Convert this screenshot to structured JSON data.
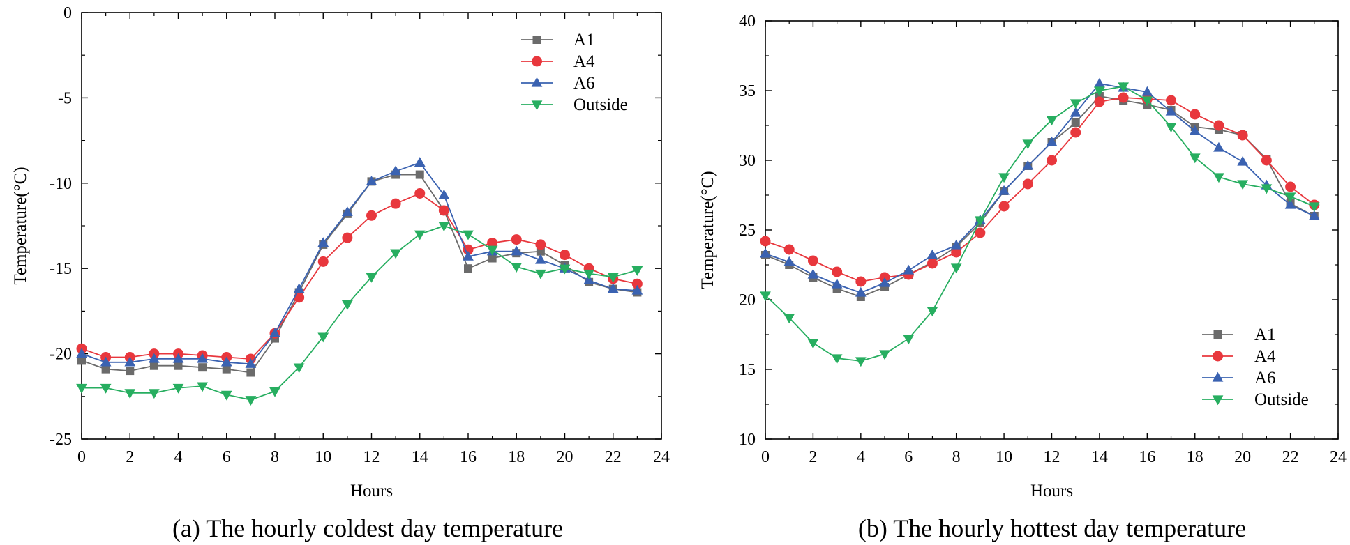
{
  "chart_data": [
    {
      "type": "line",
      "caption": "(a) The hourly coldest day temperature",
      "xlabel": "Hours",
      "ylabel": "Temperature(°C)",
      "xlim": [
        0,
        24
      ],
      "ylim": [
        -25,
        0
      ],
      "xticks": [
        0,
        2,
        4,
        6,
        8,
        10,
        12,
        14,
        16,
        18,
        20,
        22,
        24
      ],
      "yticks": [
        0,
        -5,
        -10,
        -15,
        -20,
        -25
      ],
      "legend_position": "top-right",
      "x": [
        0,
        1,
        2,
        3,
        4,
        5,
        6,
        7,
        8,
        9,
        10,
        11,
        12,
        13,
        14,
        15,
        16,
        17,
        18,
        19,
        20,
        21,
        22,
        23
      ],
      "series": [
        {
          "name": "A1",
          "color": "#6b6b6b",
          "marker": "square",
          "values": [
            -20.4,
            -20.9,
            -21.0,
            -20.7,
            -20.7,
            -20.8,
            -20.9,
            -21.1,
            -19.1,
            -16.4,
            -13.6,
            -11.8,
            -9.9,
            -9.5,
            -9.5,
            -11.6,
            -15.0,
            -14.4,
            -14.1,
            -14.0,
            -14.8,
            -15.8,
            -16.2,
            -16.4
          ]
        },
        {
          "name": "A4",
          "color": "#e8373d",
          "marker": "circle",
          "values": [
            -19.7,
            -20.2,
            -20.2,
            -20.0,
            -20.0,
            -20.1,
            -20.2,
            -20.3,
            -18.8,
            -16.7,
            -14.6,
            -13.2,
            -11.9,
            -11.2,
            -10.6,
            -11.6,
            -13.9,
            -13.5,
            -13.3,
            -13.6,
            -14.2,
            -15.0,
            -15.6,
            -15.9
          ]
        },
        {
          "name": "A6",
          "color": "#3a62b1",
          "marker": "triangle-up",
          "values": [
            -20.0,
            -20.5,
            -20.5,
            -20.3,
            -20.3,
            -20.3,
            -20.5,
            -20.6,
            -18.8,
            -16.2,
            -13.5,
            -11.7,
            -9.9,
            -9.3,
            -8.8,
            -10.7,
            -14.3,
            -14.0,
            -14.0,
            -14.5,
            -15.0,
            -15.7,
            -16.2,
            -16.3
          ]
        },
        {
          "name": "Outside",
          "color": "#27ae60",
          "marker": "triangle-down",
          "values": [
            -22.0,
            -22.0,
            -22.3,
            -22.3,
            -22.0,
            -21.9,
            -22.4,
            -22.7,
            -22.2,
            -20.8,
            -19.0,
            -17.1,
            -15.5,
            -14.1,
            -13.0,
            -12.5,
            -13.0,
            -13.9,
            -14.9,
            -15.3,
            -15.0,
            -15.3,
            -15.5,
            -15.1
          ]
        }
      ]
    },
    {
      "type": "line",
      "caption": "(b) The hourly hottest day temperature",
      "xlabel": "Hours",
      "ylabel": "Temperature(°C)",
      "xlim": [
        0,
        24
      ],
      "ylim": [
        10,
        40
      ],
      "xticks": [
        0,
        2,
        4,
        6,
        8,
        10,
        12,
        14,
        16,
        18,
        20,
        22,
        24
      ],
      "yticks": [
        10,
        15,
        20,
        25,
        30,
        35,
        40
      ],
      "legend_position": "bottom-right",
      "x": [
        0,
        1,
        2,
        3,
        4,
        5,
        6,
        7,
        8,
        9,
        10,
        11,
        12,
        13,
        14,
        15,
        16,
        17,
        18,
        19,
        20,
        21,
        22,
        23
      ],
      "series": [
        {
          "name": "A1",
          "color": "#6b6b6b",
          "marker": "square",
          "values": [
            23.2,
            22.5,
            21.6,
            20.8,
            20.2,
            20.9,
            21.8,
            22.7,
            23.8,
            25.5,
            27.8,
            29.6,
            31.3,
            32.7,
            34.6,
            34.3,
            34.0,
            33.6,
            32.4,
            32.2,
            31.8,
            30.1,
            26.9,
            26.0
          ]
        },
        {
          "name": "A4",
          "color": "#e8373d",
          "marker": "circle",
          "values": [
            24.2,
            23.6,
            22.8,
            22.0,
            21.3,
            21.6,
            21.8,
            22.6,
            23.4,
            24.8,
            26.7,
            28.3,
            30.0,
            32.0,
            34.2,
            34.5,
            34.4,
            34.3,
            33.3,
            32.5,
            31.8,
            30.0,
            28.1,
            26.8
          ]
        },
        {
          "name": "A6",
          "color": "#3a62b1",
          "marker": "triangle-up",
          "values": [
            23.3,
            22.7,
            21.8,
            21.1,
            20.5,
            21.2,
            22.1,
            23.2,
            23.9,
            25.7,
            27.8,
            29.6,
            31.3,
            33.4,
            35.5,
            35.2,
            34.9,
            33.5,
            32.1,
            30.9,
            29.9,
            28.2,
            26.8,
            26.0
          ]
        },
        {
          "name": "Outside",
          "color": "#27ae60",
          "marker": "triangle-down",
          "values": [
            20.3,
            18.7,
            16.9,
            15.8,
            15.6,
            16.1,
            17.2,
            19.2,
            22.3,
            25.7,
            28.8,
            31.2,
            32.9,
            34.1,
            35.0,
            35.3,
            34.3,
            32.4,
            30.2,
            28.8,
            28.3,
            28.0,
            27.4,
            26.7
          ]
        }
      ]
    }
  ]
}
